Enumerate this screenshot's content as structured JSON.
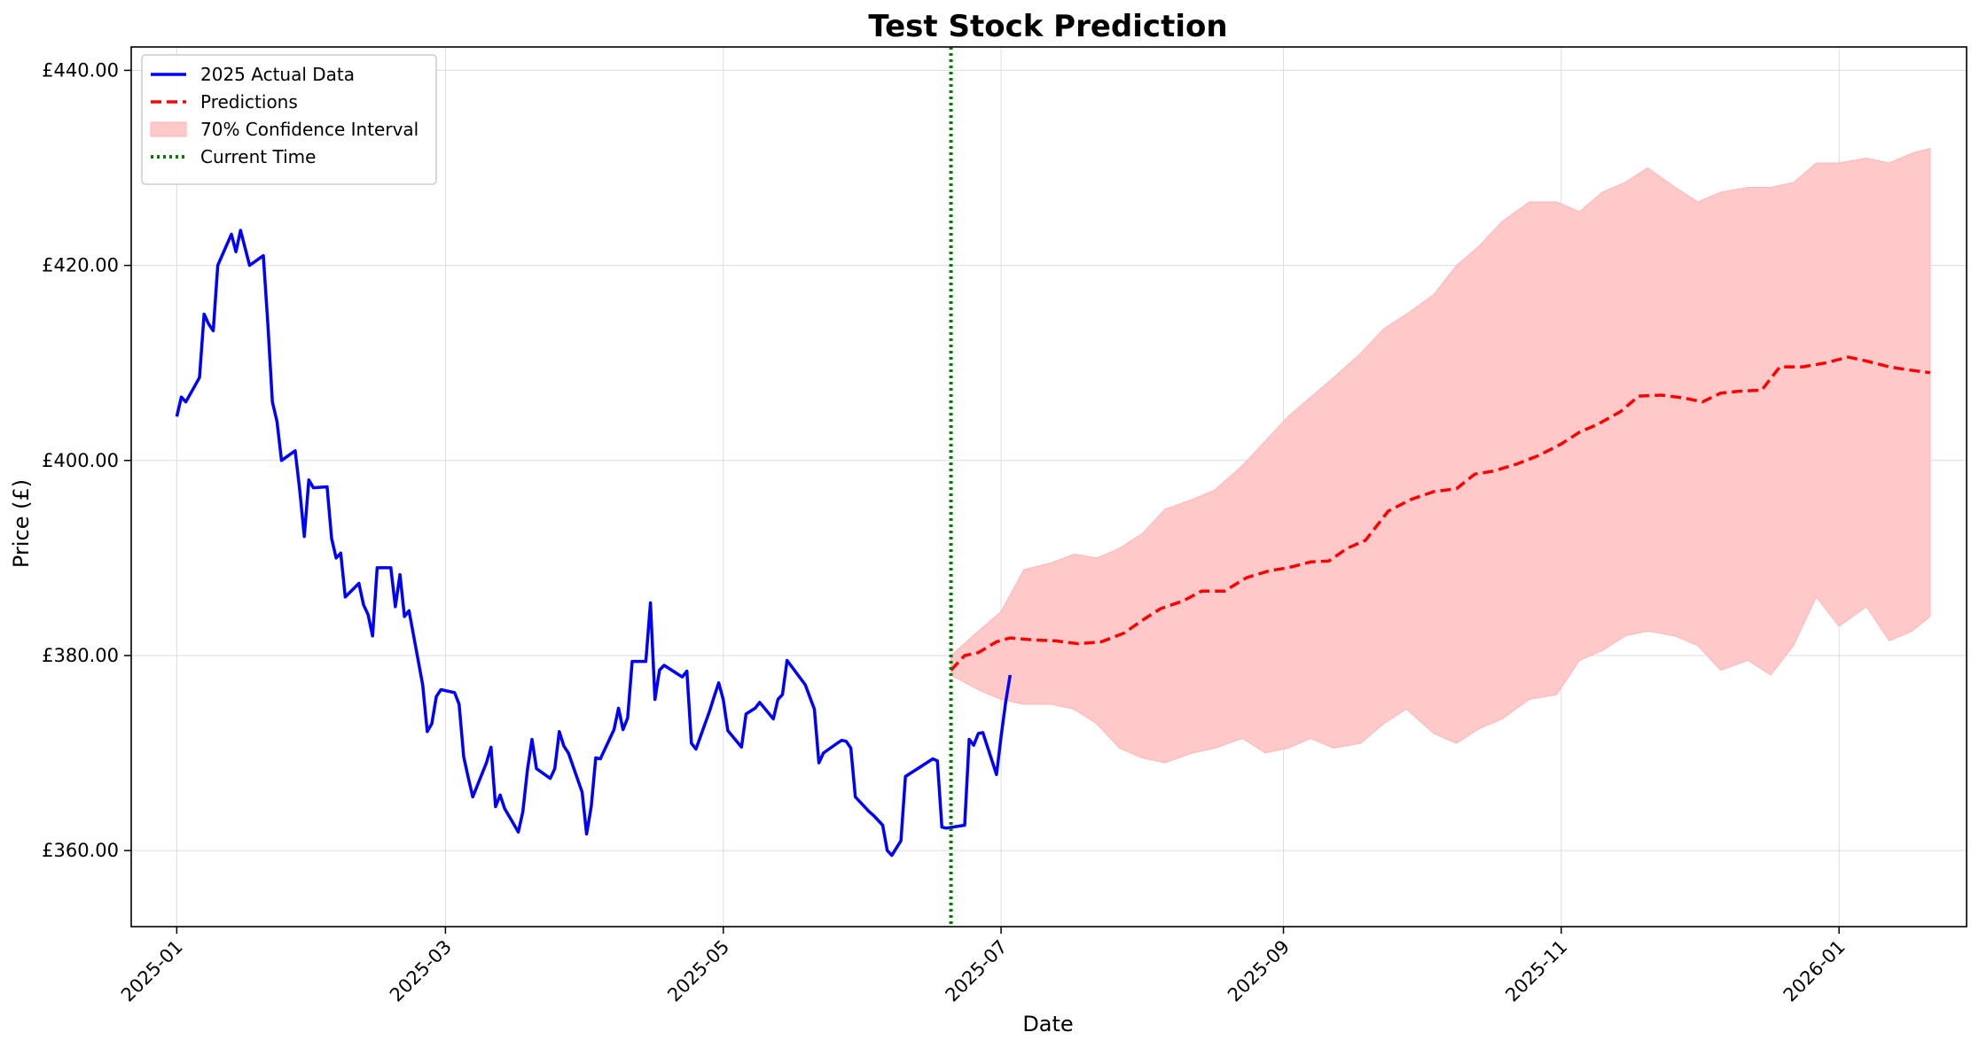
{
  "chart_data": {
    "type": "line",
    "title": "Test Stock Prediction",
    "xlabel": "Date",
    "ylabel": "Price (£)",
    "xlim": [
      "2024-12-22",
      "2026-01-29"
    ],
    "ylim": [
      352.2,
      442.4
    ],
    "x_ticks": [
      "2025-01",
      "2025-03",
      "2025-05",
      "2025-07",
      "2025-09",
      "2025-11",
      "2026-01"
    ],
    "y_ticks": [
      "£360.00",
      "£380.00",
      "£400.00",
      "£420.00",
      "£440.00"
    ],
    "y_tick_values": [
      360,
      380,
      400,
      420,
      440
    ],
    "grid": true,
    "legend_position": "top-left",
    "current_time": "2025-06-20",
    "colors": {
      "actual": "#0000ff",
      "predictions": "#ff0000",
      "confidence": "#ffc9c9",
      "current_time": "#008000"
    },
    "series": [
      {
        "name": "2025 Actual Data",
        "style": "solid",
        "points": [
          [
            "2025-01-01",
            404.5
          ],
          [
            "2025-01-02",
            406.5
          ],
          [
            "2025-01-03",
            406.0
          ],
          [
            "2025-01-06",
            408.5
          ],
          [
            "2025-01-07",
            415.0
          ],
          [
            "2025-01-08",
            414.0
          ],
          [
            "2025-01-09",
            413.3
          ],
          [
            "2025-01-10",
            420.0
          ],
          [
            "2025-01-13",
            423.2
          ],
          [
            "2025-01-14",
            421.4
          ],
          [
            "2025-01-15",
            423.6
          ],
          [
            "2025-01-17",
            420.0
          ],
          [
            "2025-01-20",
            421.0
          ],
          [
            "2025-01-21",
            414.0
          ],
          [
            "2025-01-22",
            406.0
          ],
          [
            "2025-01-23",
            404.0
          ],
          [
            "2025-01-24",
            400.0
          ],
          [
            "2025-01-27",
            401.0
          ],
          [
            "2025-01-28",
            397.0
          ],
          [
            "2025-01-29",
            392.2
          ],
          [
            "2025-01-30",
            398.0
          ],
          [
            "2025-01-31",
            397.2
          ],
          [
            "2025-02-03",
            397.3
          ],
          [
            "2025-02-04",
            392.0
          ],
          [
            "2025-02-05",
            390.0
          ],
          [
            "2025-02-06",
            390.5
          ],
          [
            "2025-02-07",
            386.0
          ],
          [
            "2025-02-10",
            387.4
          ],
          [
            "2025-02-11",
            385.2
          ],
          [
            "2025-02-12",
            384.2
          ],
          [
            "2025-02-13",
            382.0
          ],
          [
            "2025-02-14",
            389.0
          ],
          [
            "2025-02-17",
            389.0
          ],
          [
            "2025-02-18",
            385.0
          ],
          [
            "2025-02-19",
            388.3
          ],
          [
            "2025-02-20",
            384.0
          ],
          [
            "2025-02-21",
            384.6
          ],
          [
            "2025-02-24",
            377.0
          ],
          [
            "2025-02-25",
            372.2
          ],
          [
            "2025-02-26",
            373.0
          ],
          [
            "2025-02-27",
            375.8
          ],
          [
            "2025-02-28",
            376.5
          ],
          [
            "2025-03-03",
            376.2
          ],
          [
            "2025-03-04",
            375.0
          ],
          [
            "2025-03-05",
            369.6
          ],
          [
            "2025-03-06",
            367.5
          ],
          [
            "2025-03-07",
            365.5
          ],
          [
            "2025-03-10",
            369.0
          ],
          [
            "2025-03-11",
            370.6
          ],
          [
            "2025-03-12",
            364.5
          ],
          [
            "2025-03-13",
            365.7
          ],
          [
            "2025-03-14",
            364.3
          ],
          [
            "2025-03-17",
            361.9
          ],
          [
            "2025-03-18",
            364.0
          ],
          [
            "2025-03-19",
            368.3
          ],
          [
            "2025-03-20",
            371.4
          ],
          [
            "2025-03-21",
            368.4
          ],
          [
            "2025-03-24",
            367.4
          ],
          [
            "2025-03-25",
            368.4
          ],
          [
            "2025-03-26",
            372.2
          ],
          [
            "2025-03-27",
            370.7
          ],
          [
            "2025-03-28",
            370.0
          ],
          [
            "2025-03-31",
            366.0
          ],
          [
            "2025-04-01",
            361.7
          ],
          [
            "2025-04-02",
            364.5
          ],
          [
            "2025-04-03",
            369.5
          ],
          [
            "2025-04-04",
            369.4
          ],
          [
            "2025-04-07",
            372.4
          ],
          [
            "2025-04-08",
            374.6
          ],
          [
            "2025-04-09",
            372.4
          ],
          [
            "2025-04-10",
            373.6
          ],
          [
            "2025-04-11",
            379.4
          ],
          [
            "2025-04-14",
            379.4
          ],
          [
            "2025-04-15",
            385.4
          ],
          [
            "2025-04-16",
            375.5
          ],
          [
            "2025-04-17",
            378.5
          ],
          [
            "2025-04-18",
            379.0
          ],
          [
            "2025-04-22",
            377.8
          ],
          [
            "2025-04-23",
            378.4
          ],
          [
            "2025-04-24",
            371.0
          ],
          [
            "2025-04-25",
            370.4
          ],
          [
            "2025-04-28",
            374.3
          ],
          [
            "2025-04-29",
            375.8
          ],
          [
            "2025-04-30",
            377.2
          ],
          [
            "2025-05-01",
            375.5
          ],
          [
            "2025-05-02",
            372.3
          ],
          [
            "2025-05-05",
            370.6
          ],
          [
            "2025-05-06",
            374.0
          ],
          [
            "2025-05-08",
            374.6
          ],
          [
            "2025-05-09",
            375.2
          ],
          [
            "2025-05-12",
            373.5
          ],
          [
            "2025-05-13",
            375.5
          ],
          [
            "2025-05-14",
            376.0
          ],
          [
            "2025-05-15",
            379.5
          ],
          [
            "2025-05-19",
            377.0
          ],
          [
            "2025-05-21",
            374.5
          ],
          [
            "2025-05-22",
            369.0
          ],
          [
            "2025-05-23",
            370.0
          ],
          [
            "2025-05-26",
            371.0
          ],
          [
            "2025-05-27",
            371.3
          ],
          [
            "2025-05-28",
            371.2
          ],
          [
            "2025-05-29",
            370.5
          ],
          [
            "2025-05-30",
            365.5
          ],
          [
            "2025-06-02",
            364.0
          ],
          [
            "2025-06-03",
            363.6
          ],
          [
            "2025-06-05",
            362.6
          ],
          [
            "2025-06-06",
            360.0
          ],
          [
            "2025-06-07",
            359.5
          ],
          [
            "2025-06-09",
            361.0
          ],
          [
            "2025-06-10",
            367.6
          ],
          [
            "2025-06-12",
            368.2
          ],
          [
            "2025-06-13",
            368.5
          ],
          [
            "2025-06-16",
            369.4
          ],
          [
            "2025-06-17",
            369.2
          ],
          [
            "2025-06-18",
            362.4
          ],
          [
            "2025-06-19",
            362.3
          ],
          [
            "2025-06-23",
            362.6
          ],
          [
            "2025-06-24",
            371.4
          ],
          [
            "2025-06-25",
            370.8
          ],
          [
            "2025-06-26",
            372.0
          ],
          [
            "2025-06-27",
            372.1
          ],
          [
            "2025-06-30",
            367.8
          ],
          [
            "2025-07-01",
            371.7
          ],
          [
            "2025-07-02",
            375.2
          ],
          [
            "2025-07-03",
            378.0
          ]
        ]
      },
      {
        "name": "Predictions",
        "style": "dashed",
        "points": [
          [
            "2025-06-20",
            378.5
          ],
          [
            "2025-06-23",
            380.0
          ],
          [
            "2025-06-26",
            380.3
          ],
          [
            "2025-06-30",
            381.4
          ],
          [
            "2025-07-03",
            381.8
          ],
          [
            "2025-07-08",
            381.6
          ],
          [
            "2025-07-13",
            381.5
          ],
          [
            "2025-07-18",
            381.2
          ],
          [
            "2025-07-23",
            381.4
          ],
          [
            "2025-07-28",
            382.3
          ],
          [
            "2025-08-01",
            383.6
          ],
          [
            "2025-08-05",
            384.8
          ],
          [
            "2025-08-10",
            385.6
          ],
          [
            "2025-08-14",
            386.6
          ],
          [
            "2025-08-19",
            386.6
          ],
          [
            "2025-08-24",
            388.0
          ],
          [
            "2025-08-29",
            388.7
          ],
          [
            "2025-09-02",
            389.0
          ],
          [
            "2025-09-07",
            389.6
          ],
          [
            "2025-09-11",
            389.7
          ],
          [
            "2025-09-15",
            391.0
          ],
          [
            "2025-09-19",
            391.8
          ],
          [
            "2025-09-24",
            394.8
          ],
          [
            "2025-09-29",
            396.0
          ],
          [
            "2025-10-04",
            396.8
          ],
          [
            "2025-10-09",
            397.1
          ],
          [
            "2025-10-13",
            398.6
          ],
          [
            "2025-10-17",
            398.9
          ],
          [
            "2025-10-22",
            399.6
          ],
          [
            "2025-10-27",
            400.5
          ],
          [
            "2025-11-01",
            401.7
          ],
          [
            "2025-11-05",
            402.9
          ],
          [
            "2025-11-09",
            403.7
          ],
          [
            "2025-11-14",
            405.0
          ],
          [
            "2025-11-18",
            406.6
          ],
          [
            "2025-11-23",
            406.7
          ],
          [
            "2025-11-28",
            406.4
          ],
          [
            "2025-12-02",
            406.0
          ],
          [
            "2025-12-06",
            406.9
          ],
          [
            "2025-12-10",
            407.1
          ],
          [
            "2025-12-15",
            407.2
          ],
          [
            "2025-12-19",
            409.6
          ],
          [
            "2025-12-24",
            409.6
          ],
          [
            "2025-12-29",
            410.0
          ],
          [
            "2026-01-03",
            410.6
          ],
          [
            "2026-01-07",
            410.2
          ],
          [
            "2026-01-12",
            409.6
          ],
          [
            "2026-01-16",
            409.3
          ],
          [
            "2026-01-21",
            409.0
          ]
        ]
      },
      {
        "name": "70% Confidence Interval",
        "style": "band",
        "points": [
          [
            "2025-06-20",
            378.0,
            380.0
          ],
          [
            "2025-06-26",
            376.5,
            382.5
          ],
          [
            "2025-07-01",
            375.5,
            384.5
          ],
          [
            "2025-07-06",
            375.0,
            388.8
          ],
          [
            "2025-07-12",
            375.0,
            389.5
          ],
          [
            "2025-07-17",
            374.5,
            390.4
          ],
          [
            "2025-07-22",
            373.0,
            390.0
          ],
          [
            "2025-07-27",
            370.5,
            391.0
          ],
          [
            "2025-08-01",
            369.5,
            392.5
          ],
          [
            "2025-08-06",
            369.0,
            395.0
          ],
          [
            "2025-08-12",
            370.0,
            396.0
          ],
          [
            "2025-08-17",
            370.5,
            397.0
          ],
          [
            "2025-08-23",
            371.5,
            399.5
          ],
          [
            "2025-08-28",
            370.0,
            402.0
          ],
          [
            "2025-09-02",
            370.5,
            404.5
          ],
          [
            "2025-09-07",
            371.5,
            406.5
          ],
          [
            "2025-09-12",
            370.5,
            408.5
          ],
          [
            "2025-09-18",
            371.0,
            411.0
          ],
          [
            "2025-09-23",
            373.0,
            413.5
          ],
          [
            "2025-09-28",
            374.5,
            415.0
          ],
          [
            "2025-10-04",
            372.0,
            417.0
          ],
          [
            "2025-10-09",
            371.0,
            420.0
          ],
          [
            "2025-10-14",
            372.5,
            422.0
          ],
          [
            "2025-10-19",
            373.5,
            424.5
          ],
          [
            "2025-10-25",
            375.5,
            426.5
          ],
          [
            "2025-10-31",
            376.0,
            426.5
          ],
          [
            "2025-11-05",
            379.5,
            425.5
          ],
          [
            "2025-11-10",
            380.5,
            427.5
          ],
          [
            "2025-11-15",
            382.0,
            428.5
          ],
          [
            "2025-11-20",
            382.5,
            430.0
          ],
          [
            "2025-11-26",
            382.0,
            428.0
          ],
          [
            "2025-12-01",
            381.0,
            426.5
          ],
          [
            "2025-12-06",
            378.5,
            427.5
          ],
          [
            "2025-12-12",
            379.5,
            428.0
          ],
          [
            "2025-12-17",
            378.0,
            428.0
          ],
          [
            "2025-12-22",
            381.0,
            428.5
          ],
          [
            "2025-12-27",
            386.0,
            430.5
          ],
          [
            "2026-01-01",
            383.0,
            430.5
          ],
          [
            "2026-01-07",
            385.0,
            431.0
          ],
          [
            "2026-01-12",
            381.5,
            430.5
          ],
          [
            "2026-01-17",
            382.5,
            431.5
          ],
          [
            "2026-01-21",
            384.0,
            432.0
          ]
        ]
      }
    ],
    "legend": [
      {
        "label": "2025 Actual Data",
        "kind": "solid-line",
        "color": "#0000ff"
      },
      {
        "label": "Predictions",
        "kind": "dashed-line",
        "color": "#ff0000"
      },
      {
        "label": "70% Confidence Interval",
        "kind": "patch",
        "color": "#ffc9c9"
      },
      {
        "label": "Current Time",
        "kind": "dotted-line",
        "color": "#008000"
      }
    ]
  }
}
